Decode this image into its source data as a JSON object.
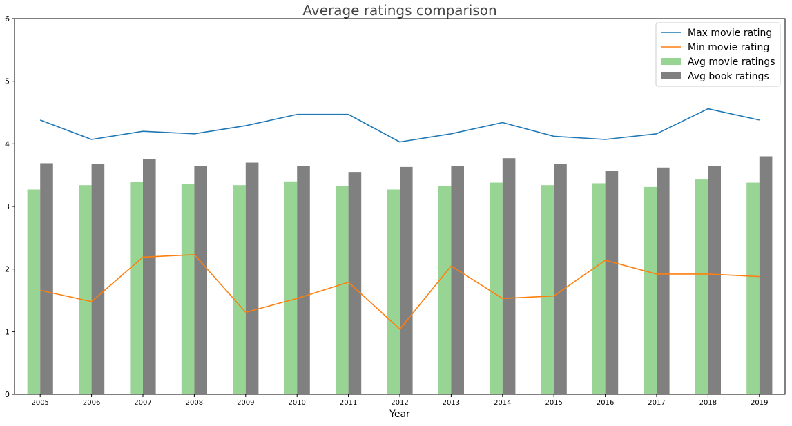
{
  "chart_data": {
    "type": "bar",
    "title": "Average ratings comparison",
    "xlabel": "Year",
    "ylabel": "",
    "ylim": [
      0,
      6
    ],
    "yticks": [
      0,
      1,
      2,
      3,
      4,
      5,
      6
    ],
    "grid": false,
    "legend_position": "top-right",
    "categories": [
      "2005",
      "2006",
      "2007",
      "2008",
      "2009",
      "2010",
      "2011",
      "2012",
      "2013",
      "2014",
      "2015",
      "2016",
      "2017",
      "2018",
      "2019"
    ],
    "series": [
      {
        "name": "Max movie rating",
        "kind": "line",
        "color": "#1f77b4",
        "values": [
          4.38,
          4.07,
          4.2,
          4.16,
          4.29,
          4.47,
          4.47,
          4.03,
          4.16,
          4.34,
          4.12,
          4.07,
          4.16,
          4.56,
          4.38
        ]
      },
      {
        "name": "Min movie rating",
        "kind": "line",
        "color": "#ff7f0e",
        "values": [
          1.66,
          1.48,
          2.19,
          2.23,
          1.31,
          1.53,
          1.79,
          1.04,
          2.05,
          1.53,
          1.57,
          2.14,
          1.92,
          1.92,
          1.88
        ]
      },
      {
        "name": "Avg movie ratings",
        "kind": "bar",
        "color": "#98d594",
        "values": [
          3.27,
          3.34,
          3.39,
          3.36,
          3.34,
          3.4,
          3.32,
          3.27,
          3.32,
          3.38,
          3.34,
          3.37,
          3.31,
          3.44,
          3.38
        ]
      },
      {
        "name": "Avg book ratings",
        "kind": "bar",
        "color": "#808080",
        "values": [
          3.69,
          3.68,
          3.76,
          3.64,
          3.7,
          3.64,
          3.55,
          3.63,
          3.64,
          3.77,
          3.68,
          3.57,
          3.62,
          3.64,
          3.8
        ]
      }
    ]
  }
}
